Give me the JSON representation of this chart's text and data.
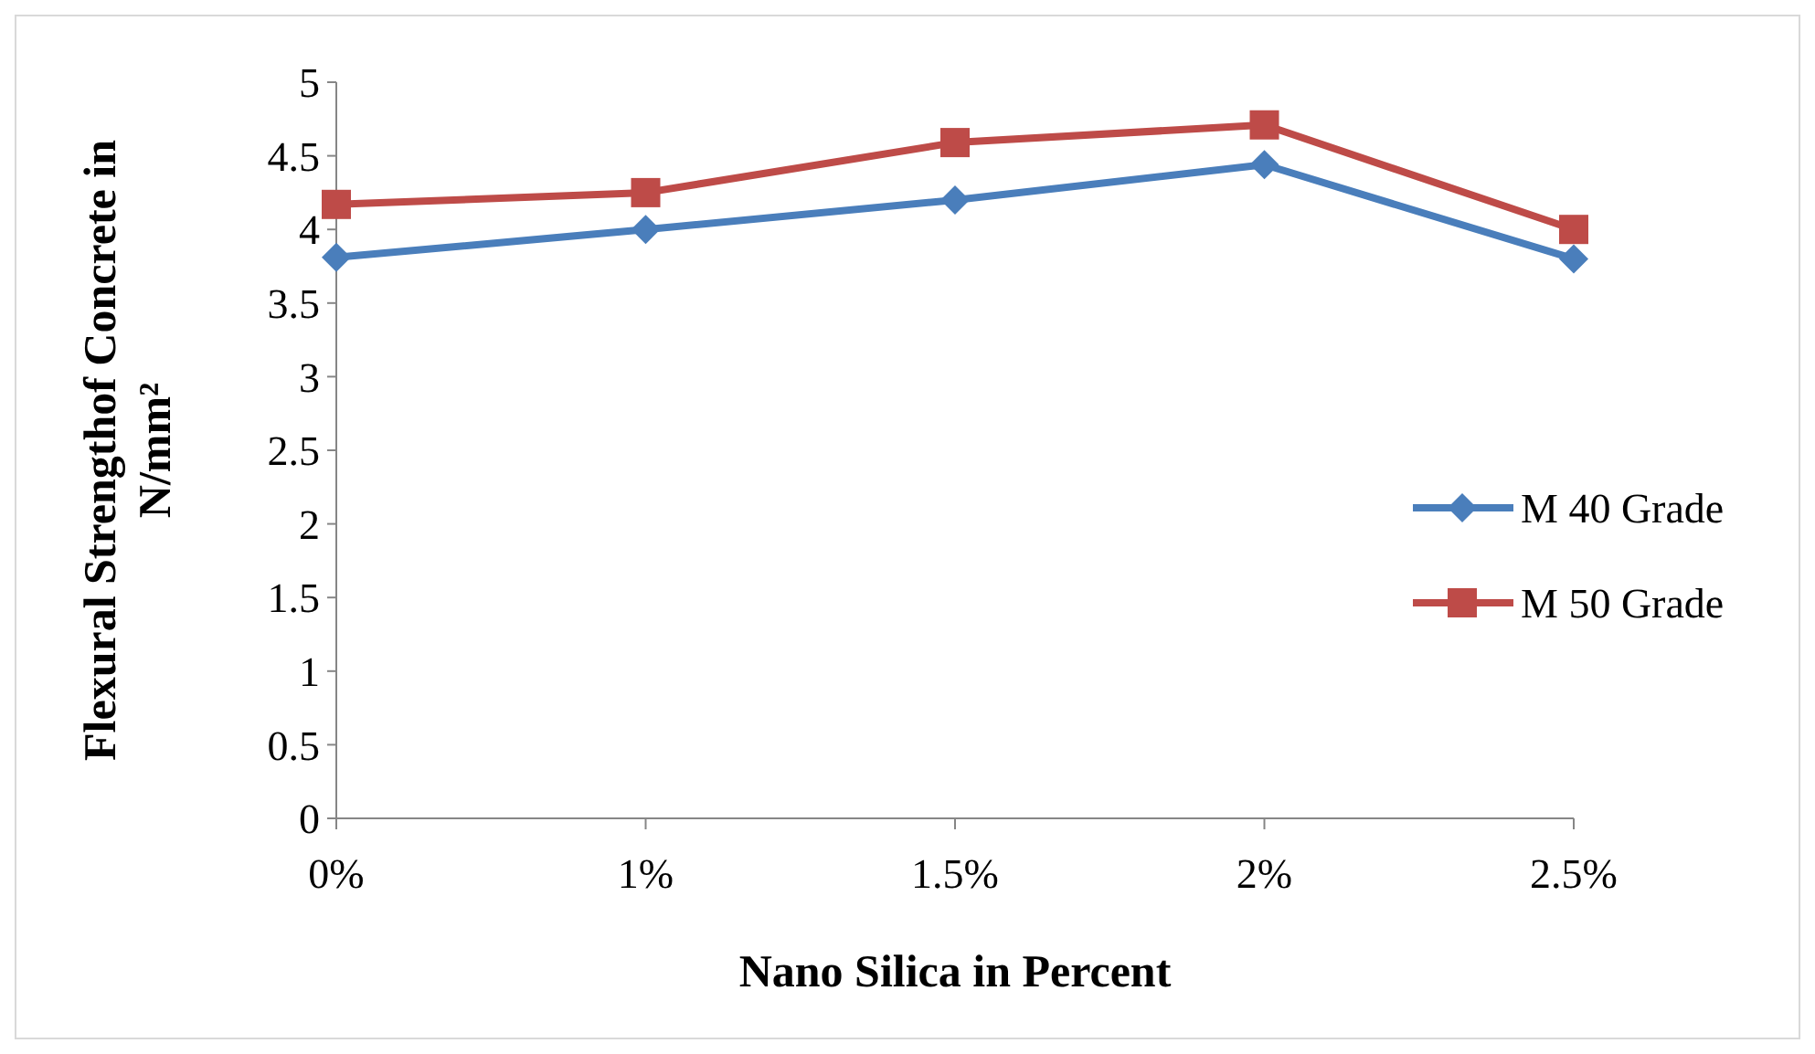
{
  "chart_data": {
    "type": "line",
    "xlabel": "Nano Silica in Percent",
    "ylabel": "Flexural  Strengthof Concrete in\nN/mm²",
    "categories": [
      "0%",
      "1%",
      "1.5%",
      "2%",
      "2.5%"
    ],
    "series": [
      {
        "name": "M 40 Grade",
        "color": "#4a7ebb",
        "values": [
          3.81,
          4.0,
          4.2,
          4.44,
          3.8
        ],
        "marker": "diamond"
      },
      {
        "name": "M 50 Grade",
        "color": "#be4b48",
        "values": [
          4.17,
          4.25,
          4.59,
          4.71,
          4.0
        ],
        "marker": "square"
      }
    ],
    "ylim": [
      0,
      5
    ],
    "yticks": [
      0,
      0.5,
      1,
      1.5,
      2,
      2.5,
      3,
      3.5,
      4,
      4.5,
      5
    ],
    "grid": false,
    "legend": "right"
  }
}
